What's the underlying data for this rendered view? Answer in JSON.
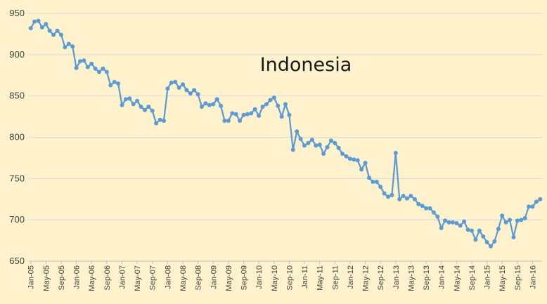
{
  "chart_data": {
    "type": "line",
    "title": "Indonesia",
    "xlabel": "",
    "ylabel": "",
    "ylim": [
      650,
      950
    ],
    "yticks": [
      650,
      700,
      750,
      800,
      850,
      900,
      950
    ],
    "grid": "horizontal",
    "legend": "none",
    "colors": {
      "background": "#FFF2CC",
      "line": "#5B9BD5",
      "grid": "#D9D9D9",
      "axis": "#BFBFBF",
      "text": "#404040"
    },
    "xtick_labels": [
      "Jan-05",
      "May-05",
      "Sep-05",
      "Jan-06",
      "May-06",
      "Sep-06",
      "Jan-07",
      "May-07",
      "Sep-07",
      "Jan-08",
      "May-08",
      "Sep-08",
      "Jan-09",
      "May-09",
      "Sep-09",
      "Jan-10",
      "May-10",
      "Sep-10",
      "Jan-11",
      "May-11",
      "Sep-11",
      "Jan-12",
      "May-12",
      "Sep-12",
      "Jan-13",
      "May-13",
      "Sep-13",
      "Jan-14",
      "May-14",
      "Sep-14",
      "Jan-15",
      "May-15",
      "Sep-15",
      "Jan-16"
    ],
    "start_month": "Jan-05",
    "values": [
      932,
      940,
      941,
      933,
      937,
      929,
      924,
      929,
      924,
      909,
      913,
      910,
      884,
      892,
      893,
      885,
      889,
      883,
      879,
      883,
      879,
      863,
      867,
      865,
      839,
      846,
      847,
      840,
      844,
      837,
      833,
      837,
      832,
      817,
      821,
      820,
      859,
      866,
      867,
      860,
      864,
      857,
      853,
      857,
      852,
      837,
      841,
      839,
      840,
      846,
      838,
      820,
      820,
      829,
      828,
      820,
      827,
      828,
      829,
      834,
      826,
      837,
      840,
      845,
      848,
      838,
      825,
      840,
      827,
      785,
      807,
      798,
      790,
      793,
      797,
      790,
      791,
      780,
      788,
      796,
      793,
      787,
      780,
      777,
      774,
      773,
      772,
      761,
      769,
      751,
      746,
      746,
      740,
      732,
      728,
      730,
      781,
      725,
      729,
      726,
      729,
      725,
      719,
      717,
      714,
      714,
      709,
      704,
      690,
      699,
      697,
      697,
      696,
      693,
      698,
      688,
      687,
      676,
      687,
      680,
      673,
      668,
      674,
      689,
      705,
      697,
      700,
      679,
      699,
      700,
      702,
      716,
      716,
      722,
      725
    ]
  }
}
